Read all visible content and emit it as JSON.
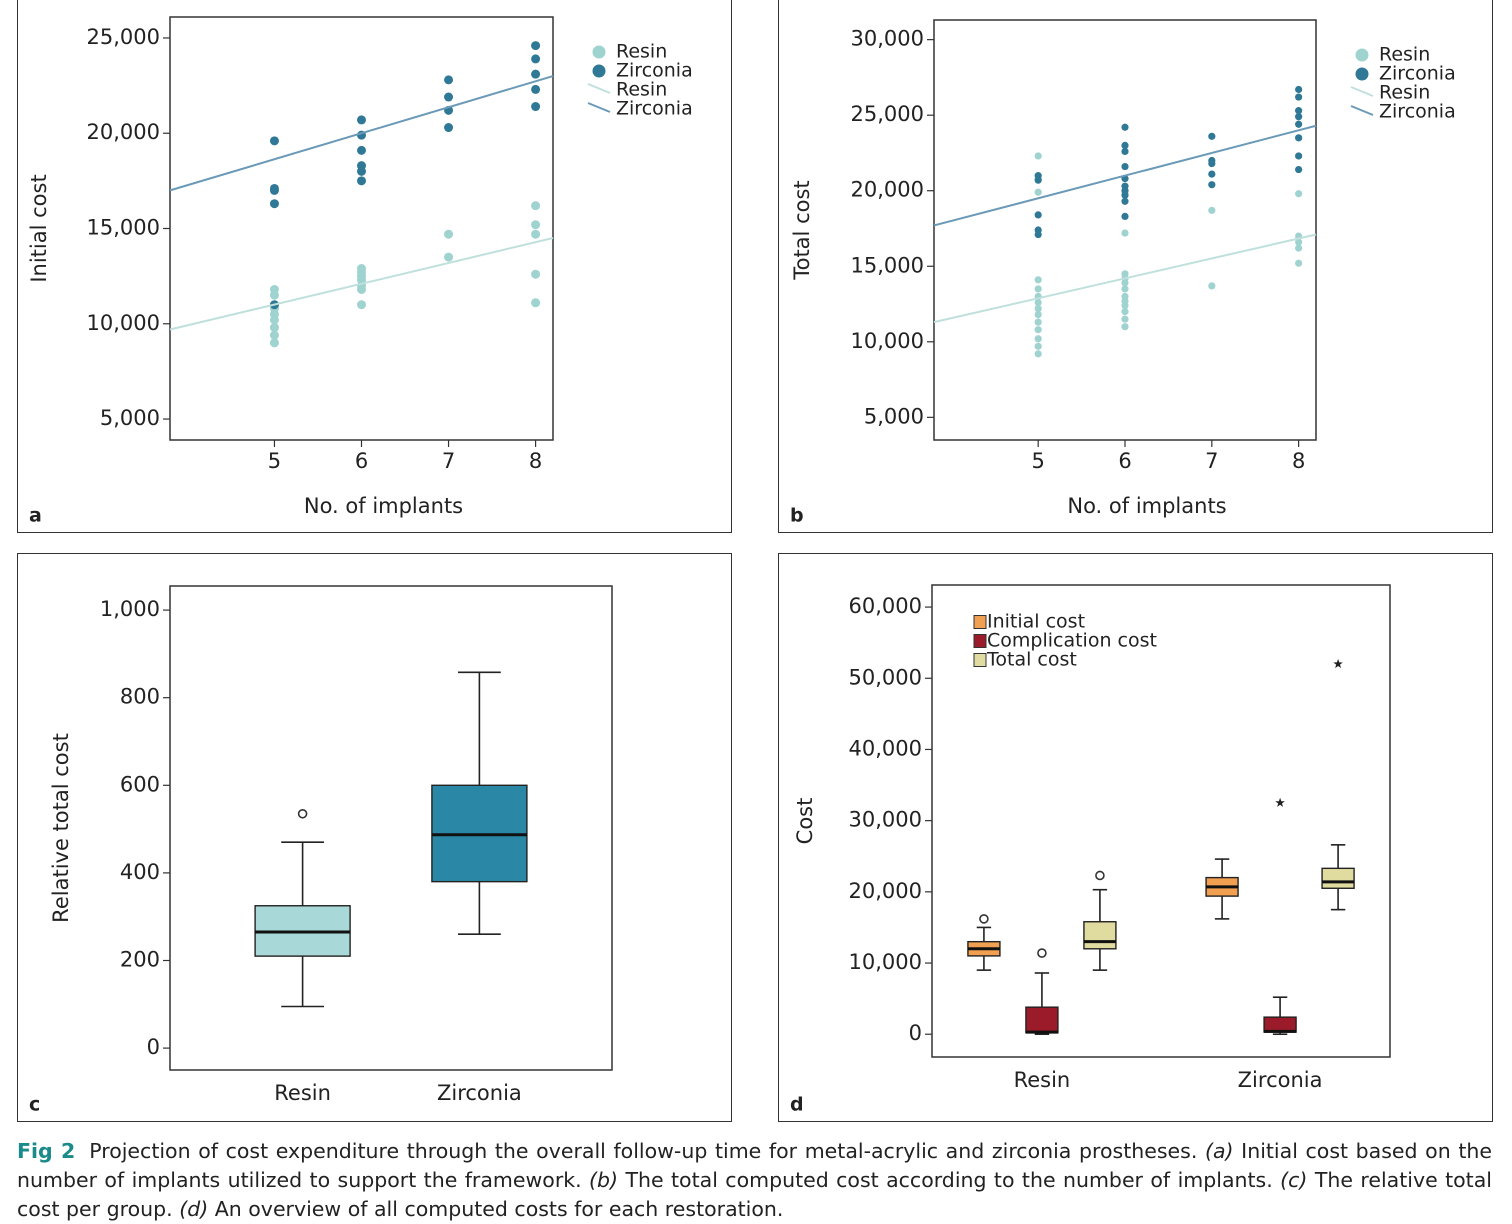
{
  "chart_data": [
    {
      "type": "scatter",
      "panel_label": "a",
      "xlabel": "No. of implants",
      "ylabel": "Initial cost",
      "xlim": [
        3.8,
        8.2
      ],
      "ylim": [
        3900,
        26100
      ],
      "xticks": [
        5,
        6,
        7,
        8
      ],
      "yticks": [
        {
          "value": 5000,
          "label": "5,000"
        },
        {
          "value": 10000,
          "label": "10,000"
        },
        {
          "value": 15000,
          "label": "15,000"
        },
        {
          "value": 20000,
          "label": "20,000"
        },
        {
          "value": 25000,
          "label": "25,000"
        }
      ],
      "legend": "upper right",
      "series": [
        {
          "name": "Resin",
          "color": "#9fd3d0",
          "x": [
            5,
            5,
            5,
            5,
            5,
            5,
            5,
            5,
            5,
            6,
            6,
            6,
            6,
            6,
            6,
            6,
            7,
            7,
            8,
            8,
            8,
            8,
            8
          ],
          "values": [
            11800,
            11500,
            11000,
            10800,
            10500,
            10200,
            9800,
            9400,
            9000,
            12900,
            12700,
            12500,
            12300,
            12000,
            11800,
            11000,
            14700,
            13500,
            16200,
            15200,
            14700,
            12600,
            11100
          ]
        },
        {
          "name": "Zirconia",
          "color": "#2f7896",
          "x": [
            5,
            5,
            5,
            5,
            5,
            6,
            6,
            6,
            6,
            6,
            6,
            7,
            7,
            7,
            7,
            8,
            8,
            8,
            8,
            8
          ],
          "values": [
            19600,
            17100,
            17000,
            16300,
            11000,
            20700,
            19900,
            19100,
            18300,
            18000,
            17500,
            22800,
            21900,
            21200,
            20300,
            24600,
            23900,
            23100,
            22300,
            21400
          ]
        },
        {
          "name": "Resin",
          "type": "line",
          "color": "#bfe0dc",
          "x": [
            3.8,
            8.2
          ],
          "values": [
            9700,
            14500
          ]
        },
        {
          "name": "Zirconia",
          "type": "line",
          "color": "#6a9ab8",
          "x": [
            3.8,
            8.2
          ],
          "values": [
            17000,
            23000
          ]
        }
      ]
    },
    {
      "type": "scatter",
      "panel_label": "b",
      "xlabel": "No. of implants",
      "ylabel": "Total cost",
      "xlim": [
        3.8,
        8.2
      ],
      "ylim": [
        3500,
        31300
      ],
      "xticks": [
        5,
        6,
        7,
        8
      ],
      "yticks": [
        {
          "value": 5000,
          "label": "5,000"
        },
        {
          "value": 10000,
          "label": "10,000"
        },
        {
          "value": 15000,
          "label": "15,000"
        },
        {
          "value": 20000,
          "label": "20,000"
        },
        {
          "value": 25000,
          "label": "25,000"
        },
        {
          "value": 30000,
          "label": "30,000"
        }
      ],
      "legend": "upper right",
      "series": [
        {
          "name": "Resin",
          "color": "#9fd3d0",
          "x": [
            5,
            5,
            5,
            5,
            5,
            5,
            5,
            5,
            5,
            5,
            5,
            5,
            5,
            5,
            6,
            6,
            6,
            6,
            6,
            6,
            6,
            6,
            6,
            6,
            6,
            6,
            7,
            7,
            8,
            8,
            8,
            8,
            8
          ],
          "values": [
            22300,
            20800,
            19900,
            14100,
            13500,
            13000,
            12600,
            12200,
            11800,
            11300,
            10800,
            10200,
            9700,
            9200,
            19800,
            17200,
            14500,
            14200,
            13900,
            13500,
            13000,
            12700,
            12400,
            12000,
            11500,
            11000,
            18700,
            13700,
            19800,
            17000,
            16600,
            16200,
            15200
          ]
        },
        {
          "name": "Zirconia",
          "color": "#2f7896",
          "x": [
            5,
            5,
            5,
            5,
            5,
            6,
            6,
            6,
            6,
            6,
            6,
            6,
            6,
            6,
            6,
            7,
            7,
            7,
            7,
            7,
            8,
            8,
            8,
            8,
            8,
            8,
            8,
            8
          ],
          "values": [
            21000,
            20700,
            18400,
            17400,
            17100,
            24200,
            23000,
            22600,
            21600,
            20800,
            20300,
            20000,
            19700,
            19300,
            18300,
            23600,
            22000,
            21800,
            21100,
            20400,
            26700,
            26200,
            25300,
            24900,
            24400,
            23500,
            22300,
            21400
          ]
        },
        {
          "name": "Resin",
          "type": "line",
          "color": "#bfe0dc",
          "x": [
            3.8,
            8.2
          ],
          "values": [
            11300,
            17100
          ]
        },
        {
          "name": "Zirconia",
          "type": "line",
          "color": "#6a9ab8",
          "x": [
            3.8,
            8.2
          ],
          "values": [
            17700,
            24300
          ]
        }
      ]
    },
    {
      "type": "box",
      "panel_label": "c",
      "ylabel": "Relative total cost",
      "ylim": [
        -50,
        1055
      ],
      "yticks": [
        0,
        200,
        400,
        600,
        800,
        {
          "value": 1000,
          "label": "1,000"
        }
      ],
      "categories": [
        "Resin",
        "Zirconia"
      ],
      "series": [
        {
          "colors": [
            "#a8d8d8",
            "#2a88a6"
          ],
          "boxes": [
            {
              "low": 95,
              "q1": 210,
              "median": 265,
              "q3": 325,
              "high": 470,
              "outliers": [
                535
              ],
              "extremes": []
            },
            {
              "low": 260,
              "q1": 380,
              "median": 487,
              "q3": 600,
              "high": 858,
              "outliers": [],
              "extremes": []
            }
          ]
        }
      ]
    },
    {
      "type": "box",
      "panel_label": "d",
      "ylabel": "Cost",
      "ylim": [
        -3200,
        63100
      ],
      "yticks": [
        0,
        {
          "value": 10000,
          "label": "10,000"
        },
        {
          "value": 20000,
          "label": "20,000"
        },
        {
          "value": 30000,
          "label": "30,000"
        },
        {
          "value": 40000,
          "label": "40,000"
        },
        {
          "value": 50000,
          "label": "50,000"
        },
        {
          "value": 60000,
          "label": "60,000"
        }
      ],
      "categories": [
        "Resin",
        "Zirconia"
      ],
      "legend": "upper left",
      "series": [
        {
          "name": "Initial cost",
          "color": "#f0a050",
          "boxes": [
            {
              "low": 9000,
              "q1": 11000,
              "median": 12000,
              "q3": 13000,
              "high": 15000,
              "outliers": [
                16200
              ],
              "extremes": []
            },
            {
              "low": 16200,
              "q1": 19400,
              "median": 20700,
              "q3": 22000,
              "high": 24600,
              "outliers": [],
              "extremes": []
            }
          ]
        },
        {
          "name": "Complication cost",
          "color": "#9b1b2a",
          "boxes": [
            {
              "low": 0,
              "q1": 200,
              "median": 300,
              "q3": 3800,
              "high": 8600,
              "outliers": [
                11400
              ],
              "extremes": []
            },
            {
              "low": 0,
              "q1": 300,
              "median": 400,
              "q3": 2400,
              "high": 5200,
              "outliers": [],
              "extremes": [
                32500
              ]
            }
          ]
        },
        {
          "name": "Total cost",
          "color": "#e0dca0",
          "boxes": [
            {
              "low": 9000,
              "q1": 12000,
              "median": 13000,
              "q3": 15800,
              "high": 20300,
              "outliers": [
                22300
              ],
              "extremes": []
            },
            {
              "low": 17500,
              "q1": 20500,
              "median": 21400,
              "q3": 23300,
              "high": 26600,
              "outliers": [],
              "extremes": [
                52000
              ]
            }
          ]
        }
      ]
    }
  ],
  "caption": {
    "label": "Fig 2",
    "parts": [
      "Projection of cost expenditure through the overall follow-up time for metal-acrylic and zirconia prostheses. ",
      "(a)",
      " Initial cost based on the number of implants utilized to support the framework. ",
      "(b)",
      " The total computed cost according to the number of implants. ",
      "(c)",
      " The relative total cost per group. ",
      "(d)",
      " An overview of all computed costs for each restoration."
    ]
  }
}
